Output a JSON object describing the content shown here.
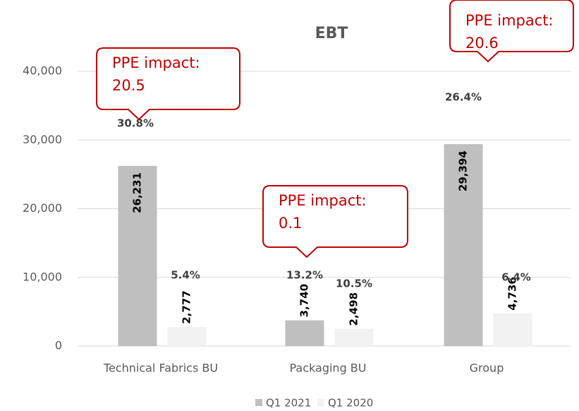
{
  "chart_data": {
    "type": "bar",
    "title": "EBT",
    "categories": [
      "Technical Fabrics BU",
      "Packaging BU",
      "Group"
    ],
    "series": [
      {
        "name": "Q1 2021",
        "color": "#bfbfbf",
        "values": [
          26231,
          3740,
          29394
        ],
        "value_labels": [
          "26,231",
          "3,740",
          "29,394"
        ],
        "annotations": [
          "30.8%",
          "13.2%",
          "26.4%"
        ]
      },
      {
        "name": "Q1 2020",
        "color": "#f2f2f2",
        "values": [
          2777,
          2498,
          4736
        ],
        "value_labels": [
          "2,777",
          "2,498",
          "4,736"
        ],
        "annotations": [
          "5.4%",
          "10.5%",
          "6.4%"
        ]
      }
    ],
    "callouts": [
      {
        "lines": [
          "PPE impact:",
          "20.5"
        ]
      },
      {
        "lines": [
          "PPE impact:",
          "0.1"
        ]
      },
      {
        "lines": [
          "PPE impact:",
          "20.6"
        ]
      }
    ],
    "ylim": [
      0,
      40000
    ],
    "yticks": [
      0,
      {
        "value": 10000,
        "label": "10,000"
      },
      {
        "value": 20000,
        "label": "20,000"
      },
      {
        "value": 30000,
        "label": "30,000"
      },
      {
        "value": 40000,
        "label": "40,000"
      }
    ],
    "grid": true,
    "legend": "bottom"
  }
}
